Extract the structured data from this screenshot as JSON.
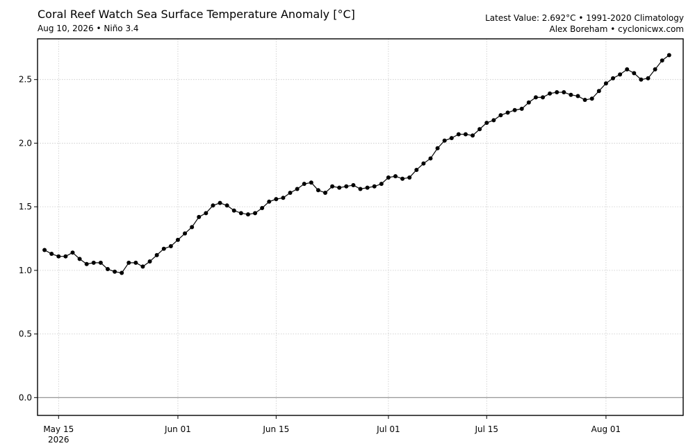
{
  "header": {
    "title": "Coral Reef Watch Sea Surface Temperature Anomaly [°C]",
    "subtitle": "Aug 10, 2026 • Niño 3.4",
    "latest": "Latest Value: 2.692°C • 1991-2020 Climatology",
    "credit": "Alex Boreham • cyclonicwx.com"
  },
  "chart_data": {
    "type": "line",
    "title": "Coral Reef Watch Sea Surface Temperature Anomaly [°C]",
    "xlabel": "",
    "ylabel": "",
    "x_start": "2026-05-13",
    "x_end": "2026-08-10",
    "xlim": [
      "2026-05-12",
      "2026-08-12"
    ],
    "ylim": [
      -0.14,
      2.82
    ],
    "grid": true,
    "zero_line": true,
    "x_ticks": [
      {
        "date": "2026-05-15",
        "label": "May 15",
        "sublabel": "2026"
      },
      {
        "date": "2026-06-01",
        "label": "Jun 01",
        "sublabel": ""
      },
      {
        "date": "2026-06-15",
        "label": "Jun 15",
        "sublabel": ""
      },
      {
        "date": "2026-07-01",
        "label": "Jul 01",
        "sublabel": ""
      },
      {
        "date": "2026-07-15",
        "label": "Jul 15",
        "sublabel": ""
      },
      {
        "date": "2026-08-01",
        "label": "Aug 01",
        "sublabel": ""
      }
    ],
    "y_ticks": [
      0.0,
      0.5,
      1.0,
      1.5,
      2.0,
      2.5
    ],
    "y_tick_labels": [
      "0.0",
      "0.5",
      "1.0",
      "1.5",
      "2.0",
      "2.5"
    ],
    "series": [
      {
        "color": "#000000",
        "values": [
          1.16,
          1.13,
          1.11,
          1.11,
          1.14,
          1.09,
          1.05,
          1.06,
          1.06,
          1.01,
          0.99,
          0.98,
          1.06,
          1.06,
          1.03,
          1.07,
          1.12,
          1.17,
          1.19,
          1.24,
          1.29,
          1.34,
          1.42,
          1.45,
          1.51,
          1.53,
          1.51,
          1.47,
          1.45,
          1.44,
          1.45,
          1.49,
          1.54,
          1.56,
          1.57,
          1.61,
          1.64,
          1.68,
          1.69,
          1.63,
          1.61,
          1.66,
          1.65,
          1.66,
          1.67,
          1.64,
          1.65,
          1.66,
          1.68,
          1.73,
          1.74,
          1.72,
          1.73,
          1.79,
          1.84,
          1.88,
          1.96,
          2.02,
          2.04,
          2.07,
          2.07,
          2.06,
          2.11,
          2.16,
          2.18,
          2.22,
          2.24,
          2.26,
          2.27,
          2.32,
          2.36,
          2.36,
          2.39,
          2.4,
          2.4,
          2.38,
          2.37,
          2.34,
          2.35,
          2.41,
          2.47,
          2.51,
          2.54,
          2.58,
          2.55,
          2.5,
          2.51,
          2.58,
          2.65,
          2.692
        ]
      }
    ]
  }
}
